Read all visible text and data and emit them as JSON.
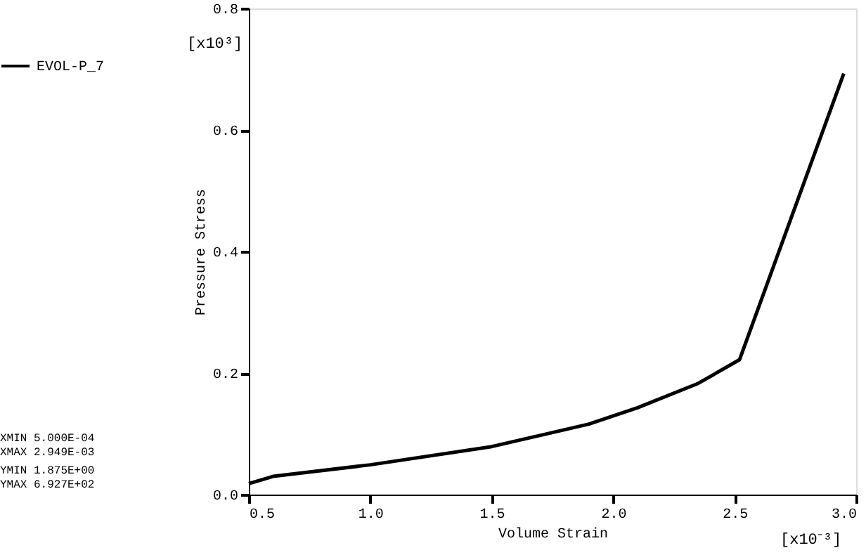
{
  "chart_data": {
    "type": "line",
    "xlabel": "Volume Strain",
    "ylabel": "Pressure Stress",
    "x": [
      0.5,
      0.6,
      1.0,
      1.5,
      1.9,
      2.1,
      2.35,
      2.52,
      2.949
    ],
    "series": [
      {
        "name": "EVOL-P_7",
        "color": "#000000",
        "values": [
          0.018,
          0.03,
          0.049,
          0.079,
          0.116,
          0.143,
          0.183,
          0.222,
          0.693
        ]
      }
    ],
    "xlim": [
      0.5,
      3.0
    ],
    "xticks": [
      0.5,
      {
        "value": 1.0,
        "label": "1.0"
      },
      1.5,
      {
        "value": 2.0,
        "label": "2.0"
      },
      2.5,
      {
        "value": 3.0,
        "label": "3.0"
      }
    ],
    "ylim": [
      0.0,
      0.8
    ],
    "yticks": [
      {
        "value": 0.0,
        "label": "0.0"
      },
      0.2,
      0.4,
      0.6,
      0.8
    ],
    "grid": false,
    "legend": "top left",
    "line_style": "solid",
    "marker": "none",
    "annotations": [
      "[x10³]",
      "[x10⁻³]",
      "XMIN  5.000E-04",
      "XMAX  2.949E-03",
      "YMIN  1.875E+00",
      "YMAX  6.927E+02"
    ]
  }
}
